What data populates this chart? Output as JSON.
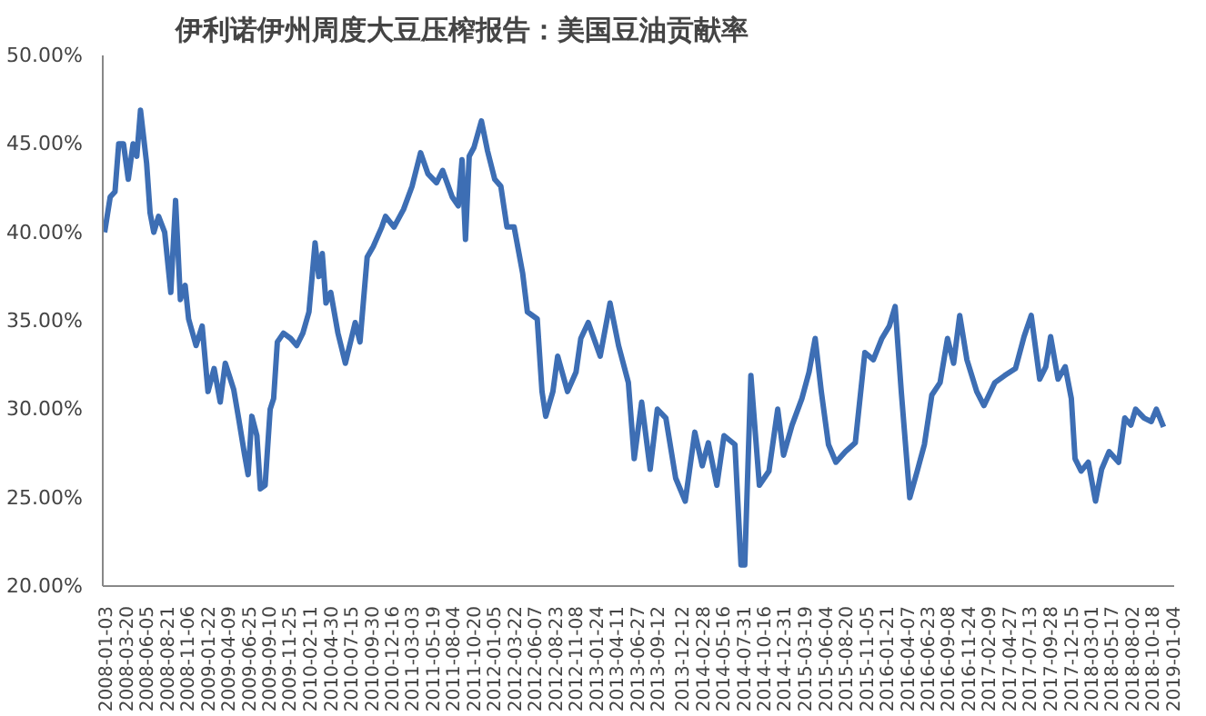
{
  "chart_data": {
    "type": "line",
    "title": "伊利诺伊州周度大豆压榨报告：美国豆油贡献率",
    "x": [
      "2008-01-03",
      "2008-01-24",
      "2008-02-11",
      "2008-02-25",
      "2008-03-14",
      "2008-04-01",
      "2008-04-19",
      "2008-05-03",
      "2008-05-17",
      "2008-06-09",
      "2008-06-22",
      "2008-07-06",
      "2008-07-24",
      "2008-08-16",
      "2008-09-08",
      "2008-09-26",
      "2008-10-14",
      "2008-11-01",
      "2008-11-14",
      "2008-12-12",
      "2009-01-04",
      "2009-01-26",
      "2009-02-18",
      "2009-03-13",
      "2009-04-01",
      "2009-05-03",
      "2009-05-21",
      "2009-06-13",
      "2009-06-26",
      "2009-07-10",
      "2009-07-29",
      "2009-08-11",
      "2009-08-29",
      "2009-09-17",
      "2009-09-30",
      "2009-10-14",
      "2009-11-06",
      "2009-12-03",
      "2009-12-26",
      "2010-01-18",
      "2010-02-10",
      "2010-03-05",
      "2010-03-19",
      "2010-04-01",
      "2010-04-15",
      "2010-05-03",
      "2010-05-30",
      "2010-06-27",
      "2010-08-03",
      "2010-08-21",
      "2010-09-17",
      "2010-10-10",
      "2010-11-11",
      "2010-11-25",
      "2010-12-27",
      "2011-02-01",
      "2011-03-05",
      "2011-04-06",
      "2011-05-04",
      "2011-06-05",
      "2011-06-28",
      "2011-08-03",
      "2011-08-26",
      "2011-09-09",
      "2011-09-22",
      "2011-10-06",
      "2011-10-24",
      "2011-11-21",
      "2011-12-14",
      "2012-01-10",
      "2012-02-02",
      "2012-02-25",
      "2012-03-23",
      "2012-04-24",
      "2012-05-12",
      "2012-06-18",
      "2012-07-06",
      "2012-07-20",
      "2012-08-16",
      "2012-09-03",
      "2012-10-10",
      "2012-11-11",
      "2012-11-29",
      "2012-12-27",
      "2013-02-10",
      "2013-03-19",
      "2013-04-20",
      "2013-05-27",
      "2013-06-18",
      "2013-07-16",
      "2013-08-17",
      "2013-09-13",
      "2013-10-15",
      "2013-11-21",
      "2013-12-27",
      "2014-02-01",
      "2014-03-01",
      "2014-03-24",
      "2014-04-25",
      "2014-05-22",
      "2014-07-02",
      "2014-07-25",
      "2014-08-08",
      "2014-08-31",
      "2014-10-02",
      "2014-11-07",
      "2014-12-10",
      "2015-01-01",
      "2015-02-02",
      "2015-03-11",
      "2015-04-07",
      "2015-04-30",
      "2015-05-23",
      "2015-06-19",
      "2015-07-17",
      "2015-08-22",
      "2015-09-28",
      "2015-11-03",
      "2015-12-05",
      "2016-01-06",
      "2016-02-03",
      "2016-02-25",
      "2016-03-19",
      "2016-04-20",
      "2016-05-18",
      "2016-06-14",
      "2016-07-12",
      "2016-08-12",
      "2016-09-09",
      "2016-10-02",
      "2016-10-25",
      "2016-11-21",
      "2016-12-28",
      "2017-01-24",
      "2017-03-06",
      "2017-04-12",
      "2017-05-23",
      "2017-06-24",
      "2017-07-21",
      "2017-08-22",
      "2017-09-14",
      "2017-10-02",
      "2017-10-30",
      "2017-11-26",
      "2017-12-19",
      "2018-01-02",
      "2018-01-25",
      "2018-02-21",
      "2018-03-20",
      "2018-04-12",
      "2018-05-10",
      "2018-06-15",
      "2018-07-08",
      "2018-07-31",
      "2018-08-18",
      "2018-09-19",
      "2018-10-16",
      "2018-11-04",
      "2018-12-01"
    ],
    "series": [
      {
        "color": "#3d6eb4",
        "values": [
          40.0,
          42.0,
          42.3,
          45.0,
          45.0,
          43.0,
          45.0,
          44.3,
          46.9,
          43.9,
          41.1,
          40.0,
          40.9,
          40.0,
          36.6,
          41.8,
          36.2,
          37.0,
          35.1,
          33.6,
          34.7,
          31.0,
          32.3,
          30.4,
          32.6,
          31.1,
          29.5,
          27.4,
          26.3,
          29.6,
          28.5,
          25.5,
          25.7,
          30.0,
          30.6,
          33.8,
          34.3,
          34.0,
          33.6,
          34.3,
          35.5,
          39.4,
          37.5,
          38.8,
          36.0,
          36.6,
          34.3,
          32.6,
          34.9,
          33.8,
          38.6,
          39.2,
          40.3,
          40.9,
          40.3,
          41.3,
          42.6,
          44.5,
          43.3,
          42.8,
          43.5,
          42.0,
          41.5,
          44.1,
          39.6,
          44.3,
          44.8,
          46.3,
          44.6,
          43.0,
          42.6,
          40.3,
          40.3,
          37.7,
          35.5,
          35.1,
          31.0,
          29.6,
          31.0,
          33.0,
          31.0,
          32.1,
          34.0,
          34.9,
          33.0,
          36.0,
          33.6,
          31.5,
          27.2,
          30.4,
          26.6,
          30.0,
          29.5,
          26.1,
          24.8,
          28.7,
          26.8,
          28.1,
          25.7,
          28.5,
          28.0,
          21.2,
          21.2,
          31.9,
          25.7,
          26.5,
          30.0,
          27.4,
          29.1,
          30.6,
          32.1,
          34.0,
          31.0,
          28.0,
          27.0,
          27.6,
          28.1,
          33.2,
          32.8,
          34.0,
          34.7,
          35.8,
          31.0,
          25.0,
          26.5,
          28.0,
          30.8,
          31.5,
          34.0,
          32.6,
          35.3,
          32.8,
          31.0,
          30.2,
          31.5,
          31.9,
          32.3,
          34.1,
          35.3,
          31.7,
          32.4,
          34.1,
          31.7,
          32.4,
          30.6,
          27.2,
          26.5,
          27.0,
          24.8,
          26.6,
          27.6,
          27.0,
          29.5,
          29.1,
          30.0,
          29.5,
          29.3,
          30.0,
          29.0
        ]
      }
    ],
    "xlim": [
      "2007-12-27",
      "2019-01-10"
    ],
    "xticks": [
      "2008-01-03",
      "2008-03-20",
      "2008-06-05",
      "2008-08-21",
      "2008-11-06",
      "2009-01-22",
      "2009-04-09",
      "2009-06-25",
      "2009-09-10",
      "2009-11-25",
      "2010-02-11",
      "2010-04-30",
      "2010-07-15",
      "2010-09-30",
      "2010-12-16",
      "2011-03-03",
      "2011-05-19",
      "2011-08-04",
      "2011-10-20",
      "2012-01-05",
      "2012-03-22",
      "2012-06-07",
      "2012-08-23",
      "2012-11-08",
      "2013-01-24",
      "2013-04-11",
      "2013-06-27",
      "2013-09-12",
      "2013-12-12",
      "2014-02-28",
      "2014-05-16",
      "2014-07-31",
      "2014-10-16",
      "2014-12-31",
      "2015-03-19",
      "2015-06-04",
      "2015-08-20",
      "2015-11-05",
      "2016-01-21",
      "2016-04-07",
      "2016-06-23",
      "2016-09-08",
      "2016-11-24",
      "2017-02-09",
      "2017-04-27",
      "2017-07-13",
      "2017-09-28",
      "2017-12-15",
      "2018-03-01",
      "2018-05-17",
      "2018-08-02",
      "2018-10-18",
      "2019-01-04"
    ],
    "ylim": [
      20,
      50
    ],
    "yticks": [
      {
        "value": 20,
        "label": "20.00%"
      },
      {
        "value": 25,
        "label": "25.00%"
      },
      {
        "value": 30,
        "label": "30.00%"
      },
      {
        "value": 35,
        "label": "35.00%"
      },
      {
        "value": 40,
        "label": "40.00%"
      },
      {
        "value": 45,
        "label": "45.00%"
      },
      {
        "value": 50,
        "label": "50.00%"
      }
    ],
    "grid": false,
    "marker": "none",
    "line_style": "solid"
  }
}
